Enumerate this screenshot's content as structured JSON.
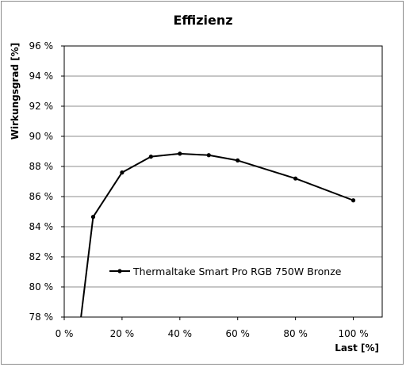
{
  "chart_data": {
    "type": "line",
    "title": "Effizienz",
    "xlabel": "Last [%]",
    "ylabel": "Wirkungsgrad [%]",
    "xlim": [
      0,
      110
    ],
    "ylim": [
      78,
      96
    ],
    "x_ticks": [
      0,
      20,
      40,
      60,
      80,
      100
    ],
    "x_tick_labels": [
      "0 %",
      "20 %",
      "40 %",
      "60 %",
      "80 %",
      "100 %"
    ],
    "y_ticks": [
      78,
      80,
      82,
      84,
      86,
      88,
      90,
      92,
      94,
      96
    ],
    "y_tick_labels": [
      "78 %",
      "80 %",
      "82 %",
      "84 %",
      "86 %",
      "88 %",
      "90 %",
      "92 %",
      "94 %",
      "96 %"
    ],
    "grid": "horizontal",
    "legend_position": "lower-center",
    "series": [
      {
        "name": "Thermaltake Smart Pro RGB 750W Bronze",
        "color": "#000000",
        "x": [
          10,
          20,
          30,
          40,
          50,
          60,
          80,
          100
        ],
        "y": [
          84.65,
          87.6,
          88.65,
          88.85,
          88.75,
          88.4,
          87.2,
          85.75
        ],
        "lead_in": {
          "x": 5.8,
          "y": 78
        }
      }
    ]
  }
}
